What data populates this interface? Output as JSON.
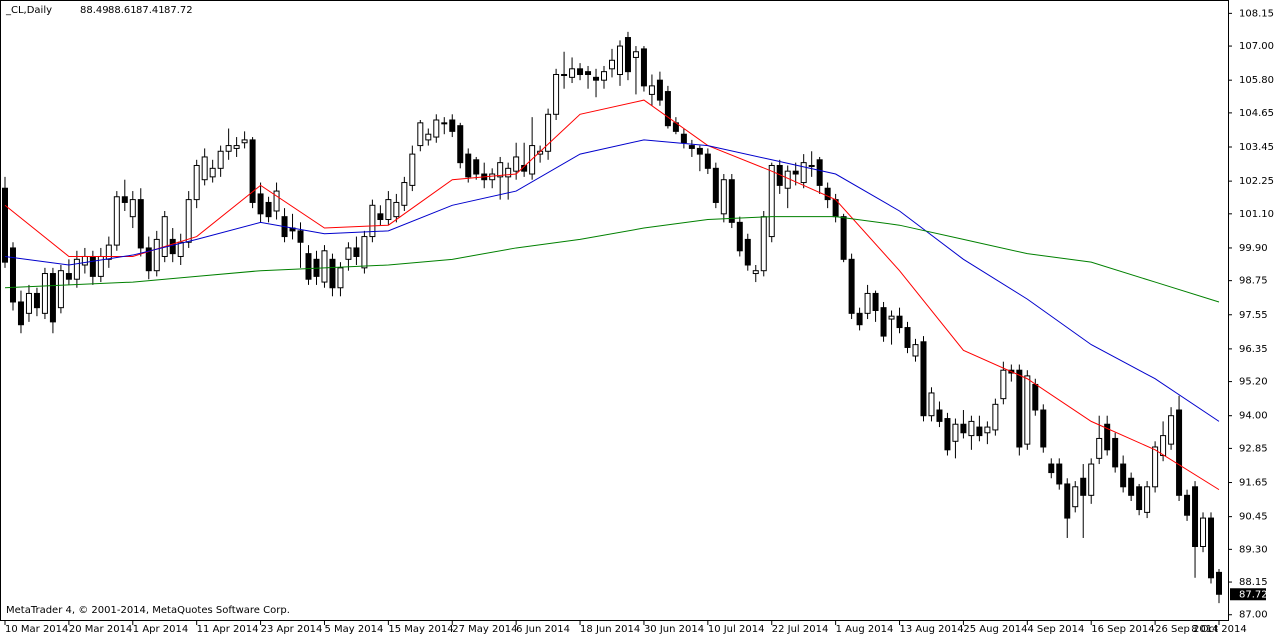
{
  "chart_data": {
    "type": "candlestick",
    "symbol": "_CL,Daily",
    "footer": "MetaTrader 4, © 2001-2014, MetaQuotes Software Corp.",
    "ylim": [
      86.78,
      108.62
    ],
    "yticks": [
      {
        "value": 108.15,
        "label": "108.15"
      },
      {
        "value": 107,
        "label": "107.00"
      },
      {
        "value": 105.8,
        "label": "105.80"
      },
      {
        "value": 104.65,
        "label": "104.65"
      },
      {
        "value": 103.45,
        "label": "103.45"
      },
      {
        "value": 102.25,
        "label": "102.25"
      },
      {
        "value": 101.1,
        "label": "101.10"
      },
      {
        "value": 99.9,
        "label": "99.90"
      },
      {
        "value": 98.75,
        "label": "98.75"
      },
      {
        "value": 97.55,
        "label": "97.55"
      },
      {
        "value": 96.35,
        "label": "96.35"
      },
      {
        "value": 95.2,
        "label": "95.20"
      },
      {
        "value": 94,
        "label": "94.00"
      },
      {
        "value": 92.85,
        "label": "92.85"
      },
      {
        "value": 91.65,
        "label": "91.65"
      },
      {
        "value": 90.45,
        "label": "90.45"
      },
      {
        "value": 89.3,
        "label": "89.30"
      },
      {
        "value": 88.15,
        "label": "88.15"
      },
      {
        "value": 87,
        "label": "87.00"
      }
    ],
    "dates": [
      "10 Mar 2014",
      "20 Mar 2014",
      "1 Apr 2014",
      "11 Apr 2014",
      "23 Apr 2014",
      "5 May 2014",
      "15 May 2014",
      "27 May 2014",
      "6 Jun 2014",
      "18 Jun 2014",
      "30 Jun 2014",
      "10 Jul 2014",
      "22 Jul 2014",
      "1 Aug 2014",
      "13 Aug 2014",
      "25 Aug 2014",
      "4 Sep 2014",
      "16 Sep 2014",
      "26 Sep 2014",
      "8 Oct 2014"
    ],
    "ohlc": [
      [
        102.0,
        102.4,
        99.2,
        99.4
      ],
      [
        99.9,
        100.1,
        97.7,
        98.0
      ],
      [
        98.0,
        98.4,
        96.9,
        97.2
      ],
      [
        97.6,
        98.6,
        97.3,
        98.3
      ],
      [
        98.3,
        98.5,
        97.5,
        97.8
      ],
      [
        97.6,
        99.2,
        97.4,
        99.0
      ],
      [
        99.0,
        99.2,
        96.9,
        97.3
      ],
      [
        97.8,
        99.3,
        97.6,
        99.1
      ],
      [
        99.0,
        99.5,
        98.6,
        98.8
      ],
      [
        98.8,
        99.8,
        98.5,
        99.5
      ],
      [
        99.3,
        99.9,
        99.0,
        99.6
      ],
      [
        99.6,
        99.8,
        98.6,
        98.9
      ],
      [
        98.9,
        99.9,
        98.7,
        99.6
      ],
      [
        99.5,
        100.3,
        99.2,
        100.0
      ],
      [
        100.0,
        101.9,
        99.8,
        101.7
      ],
      [
        101.7,
        102.3,
        101.2,
        101.5
      ],
      [
        101.0,
        101.9,
        100.6,
        101.6
      ],
      [
        101.6,
        102.0,
        99.6,
        99.9
      ],
      [
        99.9,
        100.3,
        98.8,
        99.1
      ],
      [
        99.1,
        100.5,
        98.9,
        100.2
      ],
      [
        99.6,
        101.2,
        99.4,
        101.0
      ],
      [
        100.2,
        100.6,
        99.4,
        99.7
      ],
      [
        99.6,
        100.4,
        99.3,
        100.1
      ],
      [
        100.1,
        101.9,
        99.9,
        101.6
      ],
      [
        101.6,
        103.0,
        101.3,
        102.8
      ],
      [
        102.3,
        103.4,
        102.1,
        103.1
      ],
      [
        102.4,
        103.0,
        102.2,
        102.7
      ],
      [
        102.7,
        103.5,
        102.4,
        103.3
      ],
      [
        103.3,
        104.1,
        103.0,
        103.5
      ],
      [
        103.4,
        103.8,
        103.1,
        103.5
      ],
      [
        103.6,
        104.0,
        103.4,
        103.7
      ],
      [
        103.7,
        103.8,
        101.3,
        101.5
      ],
      [
        101.8,
        102.2,
        100.8,
        101.1
      ],
      [
        101.5,
        101.7,
        100.8,
        101.0
      ],
      [
        101.2,
        102.2,
        100.9,
        101.9
      ],
      [
        101.0,
        101.3,
        100.1,
        100.3
      ],
      [
        100.6,
        101.1,
        100.2,
        100.5
      ],
      [
        100.5,
        100.8,
        99.2,
        100.1
      ],
      [
        99.7,
        100.0,
        98.6,
        98.8
      ],
      [
        99.5,
        99.8,
        98.6,
        98.9
      ],
      [
        98.7,
        100.0,
        98.5,
        99.8
      ],
      [
        99.5,
        99.7,
        98.2,
        98.5
      ],
      [
        98.5,
        99.4,
        98.2,
        99.2
      ],
      [
        99.5,
        100.1,
        99.1,
        99.9
      ],
      [
        99.9,
        100.3,
        99.3,
        99.6
      ],
      [
        99.2,
        100.5,
        99.0,
        100.3
      ],
      [
        100.3,
        101.6,
        100.1,
        101.4
      ],
      [
        101.1,
        101.4,
        100.7,
        100.9
      ],
      [
        100.9,
        101.9,
        100.7,
        101.6
      ],
      [
        101.0,
        101.8,
        100.8,
        101.5
      ],
      [
        101.4,
        102.4,
        101.2,
        102.2
      ],
      [
        102.1,
        103.5,
        101.9,
        103.2
      ],
      [
        103.5,
        104.4,
        103.3,
        104.3
      ],
      [
        103.7,
        104.1,
        103.5,
        103.9
      ],
      [
        103.8,
        104.6,
        103.6,
        104.4
      ],
      [
        104.3,
        104.5,
        103.9,
        104.3
      ],
      [
        104.4,
        104.6,
        103.8,
        104.0
      ],
      [
        104.2,
        104.3,
        102.7,
        102.9
      ],
      [
        103.2,
        103.4,
        102.2,
        102.4
      ],
      [
        103.0,
        103.1,
        102.3,
        102.5
      ],
      [
        102.5,
        102.9,
        102.0,
        102.3
      ],
      [
        102.3,
        102.7,
        102.0,
        102.5
      ],
      [
        102.4,
        103.1,
        101.6,
        102.9
      ],
      [
        102.4,
        102.9,
        101.6,
        102.7
      ],
      [
        102.6,
        103.6,
        102.3,
        103.1
      ],
      [
        102.8,
        103.6,
        102.4,
        102.6
      ],
      [
        102.5,
        104.5,
        102.3,
        103.5
      ],
      [
        103.2,
        103.5,
        102.9,
        103.3
      ],
      [
        103.3,
        104.8,
        103.0,
        104.6
      ],
      [
        104.6,
        106.2,
        104.4,
        106.0
      ],
      [
        106.0,
        106.8,
        105.5,
        106.0
      ],
      [
        105.9,
        106.6,
        105.7,
        106.2
      ],
      [
        106.2,
        106.4,
        105.8,
        106.0
      ],
      [
        106.1,
        106.3,
        105.5,
        106.0
      ],
      [
        105.9,
        106.2,
        105.2,
        105.8
      ],
      [
        105.8,
        106.3,
        105.5,
        106.1
      ],
      [
        106.2,
        106.9,
        105.9,
        106.5
      ],
      [
        106.0,
        107.2,
        105.6,
        107.0
      ],
      [
        107.3,
        107.5,
        105.8,
        106.1
      ],
      [
        106.6,
        107.0,
        105.3,
        106.8
      ],
      [
        106.9,
        107.0,
        105.4,
        105.6
      ],
      [
        105.3,
        106.0,
        104.9,
        105.6
      ],
      [
        105.8,
        106.1,
        104.9,
        105.1
      ],
      [
        105.4,
        105.6,
        104.1,
        104.2
      ],
      [
        104.3,
        104.5,
        103.9,
        104.0
      ],
      [
        103.9,
        104.1,
        103.4,
        103.6
      ],
      [
        103.5,
        103.7,
        103.1,
        103.4
      ],
      [
        103.4,
        103.5,
        102.6,
        103.2
      ],
      [
        103.2,
        103.4,
        102.5,
        102.7
      ],
      [
        102.7,
        102.9,
        101.3,
        101.5
      ],
      [
        101.1,
        102.5,
        100.8,
        102.3
      ],
      [
        102.3,
        102.5,
        100.6,
        100.8
      ],
      [
        100.8,
        101.0,
        99.6,
        99.8
      ],
      [
        100.2,
        100.4,
        99.1,
        99.3
      ],
      [
        99.0,
        99.3,
        98.7,
        99.1
      ],
      [
        99.1,
        101.2,
        98.9,
        101.0
      ],
      [
        100.3,
        102.9,
        100.1,
        102.8
      ],
      [
        102.8,
        103.0,
        101.8,
        102.1
      ],
      [
        102.0,
        102.8,
        101.3,
        102.6
      ],
      [
        102.6,
        102.9,
        102.1,
        102.5
      ],
      [
        102.2,
        103.2,
        102.0,
        102.9
      ],
      [
        102.8,
        103.3,
        102.4,
        102.8
      ],
      [
        103.0,
        103.1,
        101.8,
        102.1
      ],
      [
        102.0,
        102.2,
        101.3,
        101.6
      ],
      [
        101.6,
        101.8,
        100.8,
        101.0
      ],
      [
        101.0,
        101.1,
        99.4,
        99.5
      ],
      [
        99.5,
        99.7,
        97.4,
        97.6
      ],
      [
        97.6,
        97.8,
        97.0,
        97.2
      ],
      [
        97.6,
        98.6,
        97.4,
        98.3
      ],
      [
        98.3,
        98.4,
        97.3,
        97.7
      ],
      [
        97.8,
        98.0,
        96.6,
        96.8
      ],
      [
        97.4,
        97.7,
        96.5,
        97.5
      ],
      [
        97.5,
        97.8,
        96.9,
        97.1
      ],
      [
        97.1,
        97.3,
        96.2,
        96.4
      ],
      [
        96.1,
        96.7,
        95.9,
        96.5
      ],
      [
        96.6,
        96.8,
        93.8,
        94.0
      ],
      [
        94.0,
        95.0,
        93.8,
        94.8
      ],
      [
        94.2,
        94.5,
        93.6,
        93.8
      ],
      [
        93.9,
        94.1,
        92.6,
        92.8
      ],
      [
        93.1,
        93.9,
        92.5,
        93.7
      ],
      [
        93.7,
        94.2,
        93.2,
        93.4
      ],
      [
        93.3,
        94.0,
        92.8,
        93.8
      ],
      [
        93.6,
        94.0,
        93.1,
        93.3
      ],
      [
        93.4,
        93.8,
        93.0,
        93.6
      ],
      [
        93.5,
        94.6,
        93.3,
        94.4
      ],
      [
        94.6,
        95.9,
        94.4,
        95.6
      ],
      [
        95.6,
        95.8,
        95.2,
        95.5
      ],
      [
        95.6,
        95.8,
        92.6,
        92.9
      ],
      [
        93.0,
        95.6,
        92.8,
        95.4
      ],
      [
        95.1,
        95.3,
        94.0,
        94.2
      ],
      [
        94.2,
        94.4,
        92.7,
        92.9
      ],
      [
        92.3,
        92.5,
        91.8,
        92.0
      ],
      [
        92.3,
        92.5,
        91.4,
        91.6
      ],
      [
        91.6,
        91.8,
        89.7,
        90.4
      ],
      [
        90.8,
        91.7,
        90.6,
        91.5
      ],
      [
        91.8,
        92.3,
        89.7,
        91.2
      ],
      [
        91.2,
        92.5,
        90.9,
        92.3
      ],
      [
        92.5,
        94.0,
        92.3,
        93.2
      ],
      [
        93.7,
        94.0,
        92.6,
        92.8
      ],
      [
        93.2,
        93.4,
        92.0,
        92.2
      ],
      [
        92.3,
        92.6,
        91.3,
        91.5
      ],
      [
        91.8,
        92.0,
        91.0,
        91.2
      ],
      [
        91.5,
        91.6,
        90.5,
        90.7
      ],
      [
        90.6,
        91.7,
        90.4,
        91.5
      ],
      [
        91.5,
        93.1,
        91.3,
        92.9
      ],
      [
        92.6,
        93.8,
        92.4,
        93.3
      ],
      [
        93.0,
        94.3,
        92.8,
        94.0
      ],
      [
        94.2,
        94.7,
        91.0,
        91.2
      ],
      [
        91.2,
        91.4,
        90.3,
        90.5
      ],
      [
        91.5,
        91.7,
        88.3,
        89.4
      ],
      [
        89.4,
        90.6,
        89.2,
        90.4
      ],
      [
        90.4,
        90.6,
        88.1,
        88.3
      ],
      [
        88.49,
        88.61,
        87.41,
        87.72
      ]
    ],
    "ma_x": [
      0,
      8,
      16,
      24,
      32,
      40,
      48,
      56,
      64,
      72,
      80,
      88,
      96,
      104,
      112,
      120,
      128,
      136,
      144,
      152
    ],
    "lines": [
      {
        "color": "#ff0000",
        "values": [
          101.4,
          99.6,
          99.6,
          100.3,
          102.1,
          100.6,
          100.7,
          102.3,
          102.5,
          104.6,
          105.1,
          103.5,
          102.6,
          101.6,
          99.1,
          96.3,
          95.3,
          93.8,
          92.8,
          91.4
        ]
      },
      {
        "color": "#0000cc",
        "values": [
          99.6,
          99.3,
          99.65,
          100.2,
          100.8,
          100.4,
          100.5,
          101.4,
          101.9,
          103.2,
          103.7,
          103.5,
          103.0,
          102.5,
          101.2,
          99.5,
          98.1,
          96.5,
          95.3,
          93.8
        ]
      },
      {
        "color": "#008000",
        "values": [
          98.5,
          98.6,
          98.7,
          98.9,
          99.1,
          99.2,
          99.3,
          99.5,
          99.9,
          100.2,
          100.6,
          100.9,
          101.0,
          101.0,
          100.7,
          100.2,
          99.7,
          99.4,
          98.7,
          98.0
        ]
      }
    ]
  }
}
